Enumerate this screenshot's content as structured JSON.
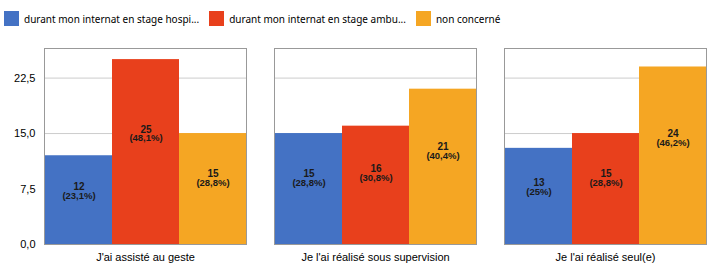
{
  "chart_data": {
    "type": "bar",
    "categories": [
      "J'ai assisté au geste",
      "Je l'ai réalisé sous supervision",
      "Je l'ai réalisé seul(e)"
    ],
    "series": [
      {
        "name": "durant mon internat en stage hospi...",
        "color": "#4472c4",
        "values": [
          12,
          15,
          13
        ],
        "pct_labels": [
          "(23,1%)",
          "(28,8%)",
          "(25%)"
        ]
      },
      {
        "name": "durant mon internat en stage ambu...",
        "color": "#e8401c",
        "values": [
          25,
          16,
          15
        ],
        "pct_labels": [
          "(48,1%)",
          "(30,8%)",
          "(28,8%)"
        ]
      },
      {
        "name": "non concerné",
        "color": "#f5a623",
        "values": [
          15,
          21,
          24
        ],
        "pct_labels": [
          "(28,8%)",
          "(40,4%)",
          "(46,2%)"
        ]
      }
    ],
    "ylim": [
      0,
      26.5
    ],
    "yticks": [
      {
        "value": 0,
        "label": "0,0"
      },
      {
        "value": 7.5,
        "label": "7,5"
      },
      {
        "value": 15,
        "label": "15,0"
      },
      {
        "value": 22.5,
        "label": "22,5"
      }
    ],
    "grid": true,
    "legend": "upper left",
    "data_labels": true
  }
}
